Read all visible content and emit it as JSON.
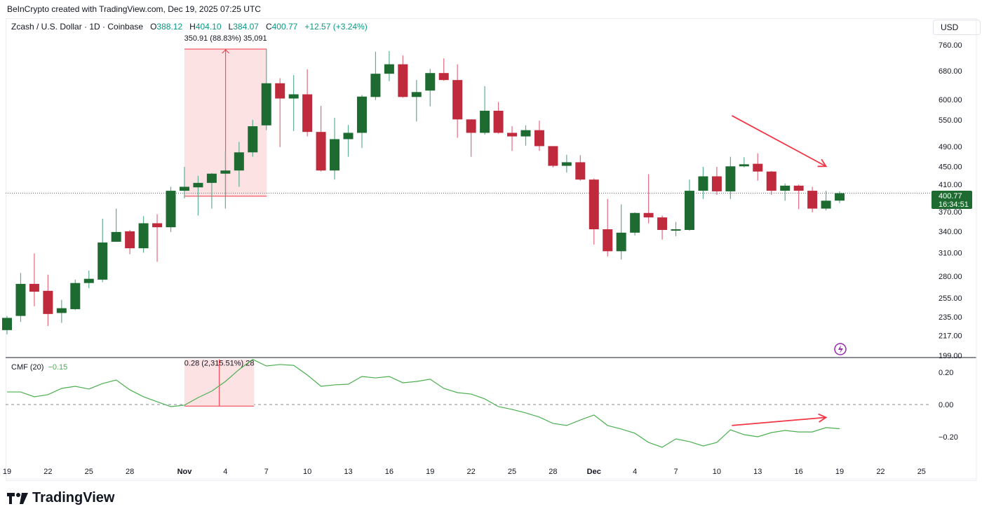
{
  "credit": "BeInCrypto created with TradingView.com, Dec 19, 2025 07:25 UTC",
  "legend": {
    "symbol": "Zcash / U.S. Dollar · 1D · Coinbase",
    "o_label": "O",
    "o": "388.12",
    "h_label": "H",
    "h": "404.10",
    "l_label": "L",
    "l": "384.07",
    "c_label": "C",
    "c": "400.77",
    "change": "+12.57 (+3.24%)"
  },
  "currency": "USD",
  "last_price": {
    "value": "400.77",
    "countdown": "16:34:51"
  },
  "measure_price": "350.91 (88.83%) 35,091",
  "measure_cmf": "0.28 (2,315.51%) 28",
  "cmf_legend": {
    "name": "CMF (20)",
    "value": "−0.15"
  },
  "logo_text": "TradingView",
  "colors": {
    "up": "#1e6b32",
    "up_wick": "#5fae8f",
    "down": "#bf2b3d",
    "down_wick": "#e36b80",
    "cmf": "#4caf50",
    "annotation": "#f23645",
    "measure_fill": "#fde2e4",
    "lightning": "#9c27b0"
  },
  "icons": [
    "tradingview-logo-icon",
    "lightning-icon"
  ],
  "chart_data": [
    {
      "type": "candlestick",
      "title": "Zcash / U.S. Dollar · 1D · Coinbase",
      "y_scale": "log",
      "ylim": [
        199,
        760
      ],
      "y_ticks": [
        "760.00",
        "680.00",
        "600.00",
        "550.00",
        "490.00",
        "450.00",
        "410.00",
        "370.00",
        "340.00",
        "310.00",
        "280.00",
        "255.00",
        "235.00",
        "217.00",
        "199.00"
      ],
      "x_ticks": [
        "19",
        "22",
        "25",
        "28",
        "Nov",
        "4",
        "7",
        "10",
        "13",
        "16",
        "19",
        "22",
        "25",
        "28",
        "Dec",
        "4",
        "7",
        "10",
        "13",
        "16",
        "19",
        "22",
        "25"
      ],
      "columns": [
        "date",
        "open",
        "high",
        "low",
        "close"
      ],
      "candles": [
        [
          "Oct 19",
          222,
          236,
          218,
          234
        ],
        [
          "Oct 20",
          236,
          284,
          230,
          271
        ],
        [
          "Oct 21",
          271,
          309,
          246,
          262
        ],
        [
          "Oct 22",
          263,
          282,
          226,
          238
        ],
        [
          "Oct 23",
          239,
          253,
          229,
          244
        ],
        [
          "Oct 24",
          243,
          276,
          242,
          272
        ],
        [
          "Oct 25",
          272,
          287,
          266,
          277
        ],
        [
          "Oct 26",
          276,
          359,
          273,
          324
        ],
        [
          "Oct 27",
          325,
          375,
          325,
          339
        ],
        [
          "Oct 28",
          340,
          342,
          308,
          316
        ],
        [
          "Oct 29",
          316,
          363,
          310,
          352
        ],
        [
          "Oct 30",
          352,
          366,
          298,
          346
        ],
        [
          "Oct 31",
          346,
          412,
          339,
          405
        ],
        [
          "Nov 1",
          405,
          449,
          392,
          412
        ],
        [
          "Nov 2",
          411,
          432,
          364,
          419
        ],
        [
          "Nov 3",
          419,
          437,
          375,
          436
        ],
        [
          "Nov 4",
          436,
          481,
          375,
          442
        ],
        [
          "Nov 5",
          442,
          500,
          412,
          478
        ],
        [
          "Nov 6",
          478,
          550,
          469,
          535
        ],
        [
          "Nov 7",
          537,
          746,
          526,
          644
        ],
        [
          "Nov 8",
          644,
          658,
          489,
          603
        ],
        [
          "Nov 9",
          603,
          667,
          524,
          614
        ],
        [
          "Nov 10",
          614,
          684,
          512,
          522
        ],
        [
          "Nov 11",
          522,
          584,
          440,
          442
        ],
        [
          "Nov 12",
          442,
          555,
          425,
          506
        ],
        [
          "Nov 13",
          506,
          538,
          469,
          520
        ],
        [
          "Nov 14",
          520,
          612,
          487,
          608
        ],
        [
          "Nov 15",
          607,
          738,
          599,
          671
        ],
        [
          "Nov 16",
          671,
          740,
          650,
          699
        ],
        [
          "Nov 17",
          699,
          726,
          605,
          607
        ],
        [
          "Nov 18",
          607,
          653,
          546,
          620
        ],
        [
          "Nov 19",
          624,
          685,
          583,
          673
        ],
        [
          "Nov 20",
          673,
          717,
          651,
          653
        ],
        [
          "Nov 21",
          653,
          699,
          509,
          551
        ],
        [
          "Nov 22",
          551,
          551,
          469,
          520
        ],
        [
          "Nov 23",
          520,
          636,
          516,
          572
        ],
        [
          "Nov 24",
          572,
          594,
          518,
          520
        ],
        [
          "Nov 25",
          520,
          535,
          481,
          512
        ],
        [
          "Nov 26",
          512,
          537,
          492,
          526
        ],
        [
          "Nov 27",
          526,
          548,
          481,
          491
        ],
        [
          "Nov 28",
          491,
          491,
          448,
          451
        ],
        [
          "Nov 29",
          451,
          473,
          438,
          458
        ],
        [
          "Nov 30",
          458,
          472,
          423,
          425
        ],
        [
          "Dec 1",
          425,
          427,
          321,
          343
        ],
        [
          "Dec 2",
          343,
          391,
          305,
          312
        ],
        [
          "Dec 3",
          312,
          382,
          301,
          338
        ],
        [
          "Dec 4",
          338,
          369,
          334,
          368
        ],
        [
          "Dec 5",
          368,
          435,
          352,
          361
        ],
        [
          "Dec 6",
          361,
          364,
          328,
          342
        ],
        [
          "Dec 7",
          342,
          354,
          333,
          343
        ],
        [
          "Dec 8",
          342,
          425,
          341,
          405
        ],
        [
          "Dec 9",
          405,
          449,
          391,
          431
        ],
        [
          "Dec 10",
          431,
          449,
          398,
          404
        ],
        [
          "Dec 11",
          404,
          469,
          391,
          450
        ],
        [
          "Dec 12",
          450,
          468,
          448,
          454
        ],
        [
          "Dec 13",
          455,
          476,
          423,
          440
        ],
        [
          "Dec 14",
          440,
          441,
          398,
          405
        ],
        [
          "Dec 15",
          405,
          418,
          388,
          414
        ],
        [
          "Dec 16",
          414,
          416,
          374,
          405
        ],
        [
          "Dec 17",
          405,
          412,
          369,
          375
        ],
        [
          "Dec 18",
          375,
          405,
          372,
          388
        ],
        [
          "Dec 19",
          388.12,
          404.1,
          384.07,
          400.77
        ]
      ],
      "last_price_line": 400.77,
      "price_range_measure": {
        "from_date": "Nov 1",
        "to_date": "Nov 6",
        "low": 395.5,
        "high": 746.4,
        "label": "350.91 (88.83%) 35,091"
      },
      "trend_arrow": {
        "from": [
          "Dec 11",
          560
        ],
        "to": [
          "Dec 18",
          450
        ],
        "direction": "down"
      }
    },
    {
      "type": "line",
      "title": "CMF (20)",
      "ylim": [
        -0.3,
        0.3
      ],
      "y_ticks": [
        "0.20",
        "0.00",
        "−0.20"
      ],
      "zero_line": true,
      "values": [
        0.078,
        0.078,
        0.048,
        0.061,
        0.1,
        0.113,
        0.096,
        0.13,
        0.152,
        0.091,
        0.048,
        0.017,
        -0.013,
        -0.004,
        0.043,
        0.083,
        0.143,
        0.217,
        0.28,
        0.239,
        0.248,
        0.243,
        0.183,
        0.113,
        0.122,
        0.126,
        0.174,
        0.165,
        0.174,
        0.135,
        0.143,
        0.157,
        0.1,
        0.074,
        0.065,
        0.035,
        -0.013,
        -0.03,
        -0.052,
        -0.078,
        -0.117,
        -0.13,
        -0.096,
        -0.065,
        -0.13,
        -0.152,
        -0.178,
        -0.235,
        -0.265,
        -0.213,
        -0.23,
        -0.257,
        -0.235,
        -0.157,
        -0.187,
        -0.2,
        -0.174,
        -0.161,
        -0.17,
        -0.17,
        -0.143,
        -0.15
      ],
      "cmf_measure": {
        "from_date": "Nov 1",
        "to_date": "Nov 6",
        "low": -0.01,
        "high": 0.28,
        "label": "0.28 (2,315.51%) 28"
      },
      "trend_arrow": {
        "from": [
          "Dec 11",
          -0.13
        ],
        "to": [
          "Dec 18",
          -0.08
        ],
        "direction": "up"
      }
    }
  ]
}
